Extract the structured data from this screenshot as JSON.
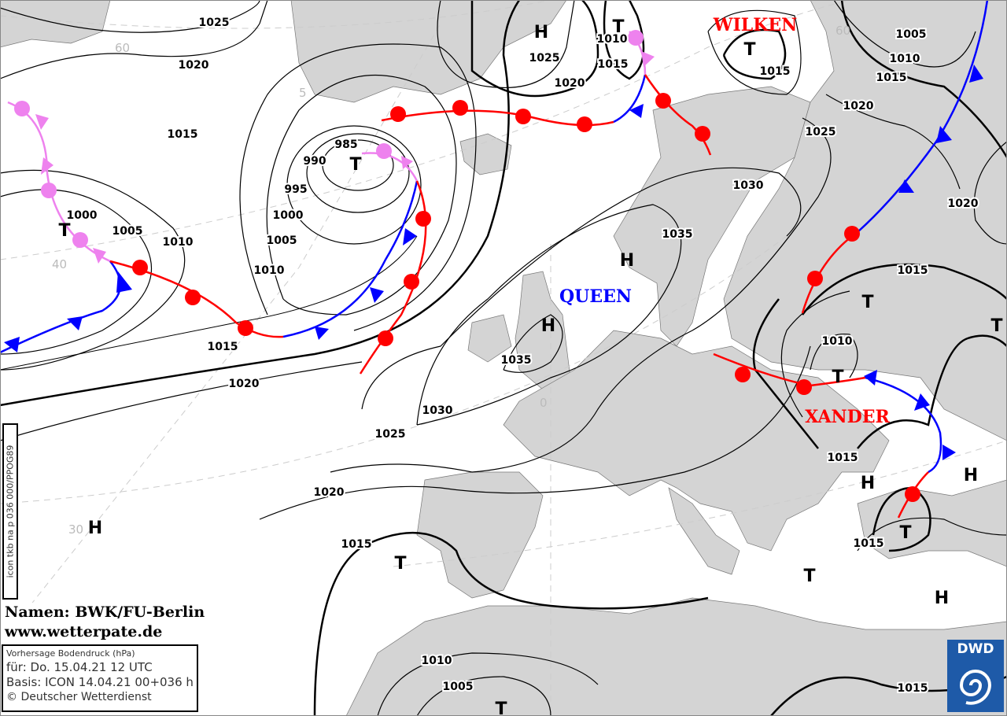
{
  "map": {
    "title": "Vorhersage Bodendruck (hPa)",
    "valid": "für:  Do. 15.04.21  12 UTC",
    "basis": "Basis: ICON  14.04.21 00+036 h",
    "copyright": "© Deutscher Wetterdienst",
    "product_code": "icon tkb na p 036 000/PPOG89",
    "credit_names": "Namen: BWK/FU-Berlin",
    "credit_url": "www.wetterpate.de",
    "logo": "DWD",
    "colors": {
      "land": "#d4d4d4",
      "sea": "#ffffff",
      "warm_front": "#ff0000",
      "cold_front": "#0000ff",
      "occlusion": "#ee82ee",
      "low_name": "#ff0000",
      "high_name": "#0000ff"
    }
  },
  "systems": {
    "names": [
      "WILKEN",
      "QUEEN",
      "XANDER"
    ],
    "centers": [
      "H",
      "T",
      "T",
      "T",
      "T",
      "H",
      "H",
      "T",
      "T",
      "T",
      "H",
      "H",
      "T",
      "T",
      "T",
      "H",
      "H",
      "T"
    ]
  },
  "isobar_labels": [
    "1025",
    "1020",
    "1015",
    "1000",
    "1005",
    "1010",
    "985",
    "990",
    "995",
    "1000",
    "1005",
    "1010",
    "1015",
    "1020",
    "1025",
    "1030",
    "1035",
    "1020",
    "1015",
    "1010",
    "1005",
    "1025",
    "1020",
    "1010",
    "1015",
    "1015",
    "1005",
    "1010",
    "1015",
    "1020",
    "1025",
    "1030",
    "1035",
    "1020",
    "1015",
    "1010",
    "1015",
    "1015",
    "1015"
  ],
  "latitude_labels": [
    "60",
    "5",
    "40",
    "30",
    "0",
    "60"
  ]
}
